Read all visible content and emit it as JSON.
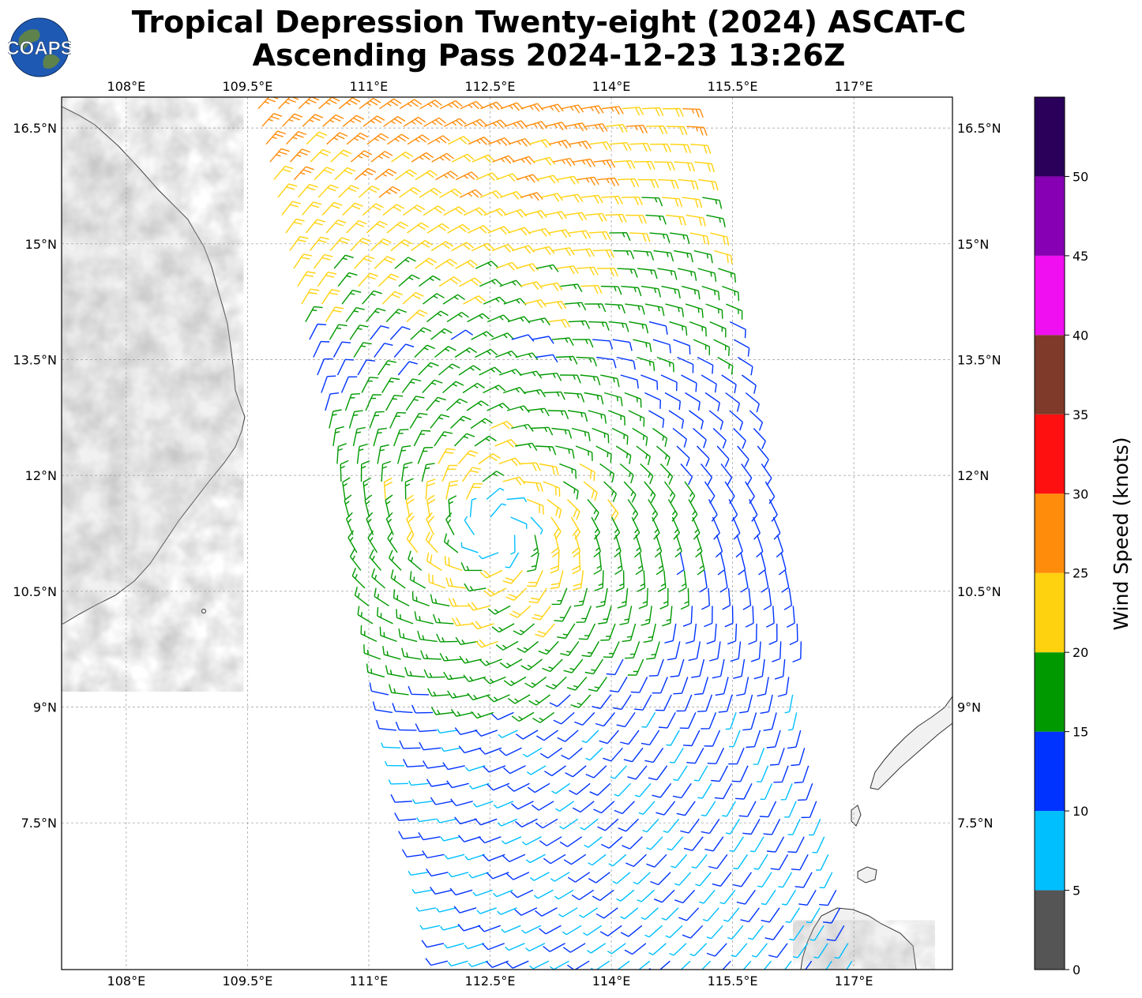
{
  "title": {
    "line1": "Tropical Depression Twenty-eight (2024) ASCAT-C",
    "line2": "Ascending Pass 2024-12-23 13:26Z"
  },
  "logo": {
    "text": "COAPS",
    "ocean_color": "#1e5ab4",
    "land_color": "#6a8a3a"
  },
  "map": {
    "extent": {
      "lon_min": 107.2,
      "lon_max": 118.22,
      "lat_min": 5.6,
      "lat_max": 16.9
    },
    "lon_ticks": [
      108,
      109.5,
      111,
      112.5,
      114,
      115.5,
      117
    ],
    "lon_labels": [
      "108°E",
      "109.5°E",
      "111°E",
      "112.5°E",
      "114°E",
      "115.5°E",
      "117°E"
    ],
    "lat_ticks": [
      16.5,
      15,
      13.5,
      12,
      10.5,
      9,
      7.5
    ],
    "lat_labels": [
      "16.5°N",
      "15°N",
      "13.5°N",
      "12°N",
      "10.5°N",
      "9°N",
      "7.5°N"
    ],
    "storm_center": {
      "lon": 112.6,
      "lat": 11.3
    },
    "swath": {
      "lon_left_north": 109.6,
      "lon_left_south": 112.0,
      "lon_right_north": 115.1,
      "lon_right_south": 117.1
    },
    "land_regions": [
      "Vietnam coast",
      "Palawan (Philippines)",
      "Borneo"
    ]
  },
  "colorbar": {
    "label": "Wind Speed (knots)",
    "ticks": [
      "0",
      "5",
      "10",
      "15",
      "20",
      "25",
      "30",
      "35",
      "40",
      "45",
      "50"
    ],
    "bins": [
      {
        "min": 0,
        "max": 5,
        "color": "#555555"
      },
      {
        "min": 5,
        "max": 10,
        "color": "#00bfff"
      },
      {
        "min": 10,
        "max": 15,
        "color": "#0033ff"
      },
      {
        "min": 15,
        "max": 20,
        "color": "#009900"
      },
      {
        "min": 20,
        "max": 25,
        "color": "#ffd20f"
      },
      {
        "min": 25,
        "max": 30,
        "color": "#ff8c0a"
      },
      {
        "min": 30,
        "max": 35,
        "color": "#ff1010"
      },
      {
        "min": 35,
        "max": 40,
        "color": "#7f3a2a"
      },
      {
        "min": 40,
        "max": 45,
        "color": "#f00ff0"
      },
      {
        "min": 45,
        "max": 50,
        "color": "#8800b3"
      },
      {
        "min": 50,
        "max": 55,
        "color": "#2a005a"
      }
    ]
  }
}
